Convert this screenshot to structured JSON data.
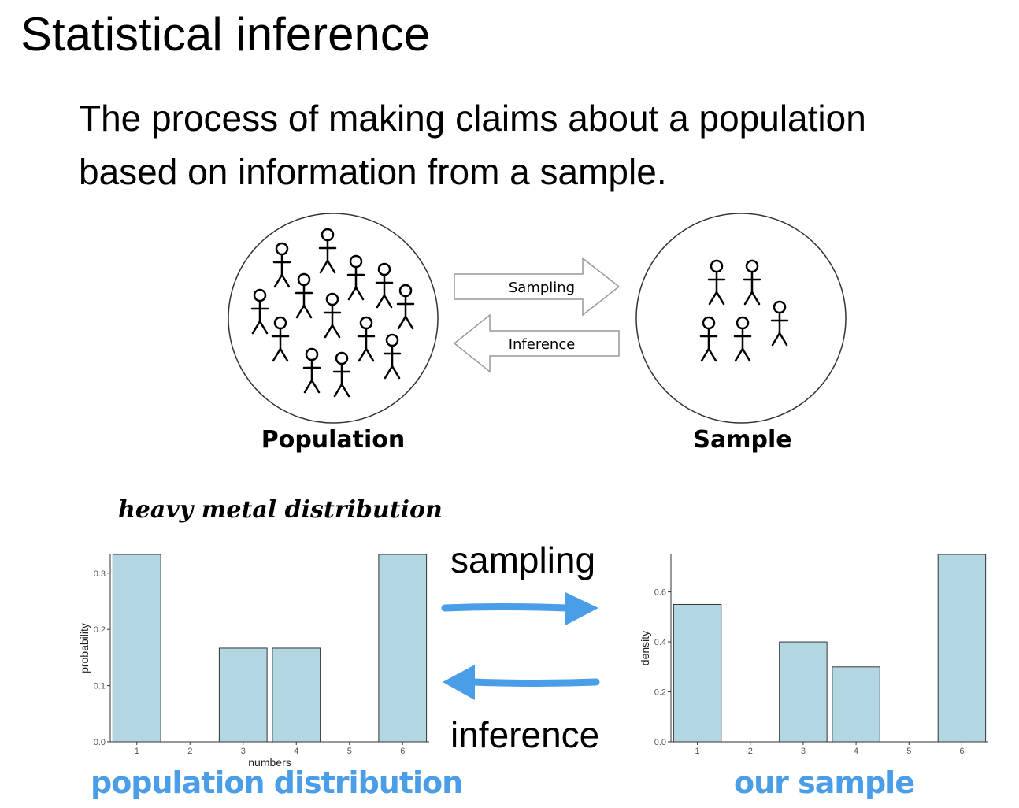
{
  "title": "Statistical inference",
  "definition": {
    "line1": "The process of making claims about a population",
    "line2": "based on information from a sample."
  },
  "diagram": {
    "population_label": "Population",
    "sample_label": "Sample",
    "sampling_arrow_label": "Sampling",
    "inference_arrow_label": "Inference"
  },
  "heavy_metal_title": "heavy metal distribution",
  "middle": {
    "sampling": "sampling",
    "inference": "inference",
    "arrow_color": "#4a9ee8"
  },
  "captions": {
    "population": "population distribution",
    "sample": "our sample"
  },
  "chart_data": [
    {
      "type": "bar",
      "categories": [
        "1",
        "2",
        "3",
        "4",
        "5",
        "6"
      ],
      "values": [
        0.3333,
        0,
        0.1667,
        0.1667,
        0,
        0.3333
      ],
      "xlabel": "numbers",
      "ylabel": "probability",
      "ylim": [
        0,
        0.3333
      ],
      "yticks": [
        0.0,
        0.1,
        0.2,
        0.3
      ],
      "ytick_labels": [
        "0.0",
        "0.1",
        "0.2",
        "0.3"
      ],
      "bar_color": "#b3d6e3",
      "grid": false
    },
    {
      "type": "bar",
      "categories": [
        "1",
        "2",
        "3",
        "4",
        "5",
        "6"
      ],
      "values": [
        0.55,
        0,
        0.4,
        0.3,
        0,
        0.75
      ],
      "xlabel": "",
      "ylabel": "density",
      "ylim": [
        0,
        0.75
      ],
      "yticks": [
        0.0,
        0.2,
        0.4,
        0.6
      ],
      "ytick_labels": [
        "0.0",
        "0.2",
        "0.4",
        "0.6"
      ],
      "bar_color": "#b3d6e3",
      "grid": false
    }
  ]
}
